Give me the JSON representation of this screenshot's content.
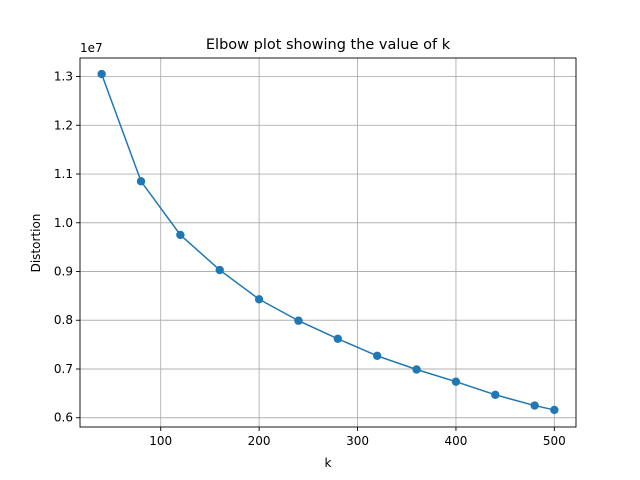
{
  "chart_data": {
    "type": "line",
    "title": "Elbow plot showing the value of k",
    "xlabel": "k",
    "ylabel": "Distortion",
    "y_offset_text": "1e7",
    "xlim": [
      18,
      522
    ],
    "ylim": [
      5.81,
      13.38
    ],
    "grid": true,
    "marker": "circle",
    "x_ticks": [
      100,
      200,
      300,
      400,
      500
    ],
    "x_tick_labels": [
      "100",
      "200",
      "300",
      "400",
      "500"
    ],
    "y_ticks": [
      6,
      7,
      8,
      9,
      10,
      11,
      12,
      13
    ],
    "y_tick_labels": [
      "0.6",
      "0.7",
      "0.8",
      "0.9",
      "1.0",
      "1.1",
      "1.2",
      "1.3"
    ],
    "y_units": "1e6",
    "series": [
      {
        "color": "#1f77b4",
        "x": [
          40,
          80,
          120,
          160,
          200,
          240,
          280,
          320,
          360,
          400,
          440,
          480,
          500
        ],
        "values": [
          13.05,
          10.85,
          9.75,
          9.03,
          8.43,
          7.99,
          7.62,
          7.27,
          6.99,
          6.74,
          6.47,
          6.25,
          6.16
        ]
      }
    ]
  }
}
